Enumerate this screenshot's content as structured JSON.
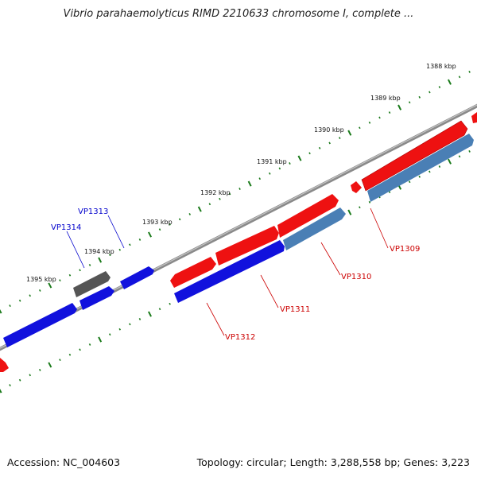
{
  "title": "Vibrio parahaemolyticus RIMD 2210633 chromosome I, complete ...",
  "footer": {
    "accession": "Accession: NC_004603",
    "stats": "Topology: circular; Length: 3,288,558 bp; Genes: 3,223"
  },
  "ruler_labels": [
    "1388 kbp",
    "1389 kbp",
    "1390 kbp",
    "1391 kbp",
    "1392 kbp",
    "1393 kbp",
    "1394 kbp",
    "1395 kbp"
  ],
  "gene_labels": [
    {
      "text": "VP1309",
      "color": "#cc0000"
    },
    {
      "text": "VP1310",
      "color": "#cc0000"
    },
    {
      "text": "VP1311",
      "color": "#cc0000"
    },
    {
      "text": "VP1312",
      "color": "#cc0000"
    },
    {
      "text": "VP1313",
      "color": "#0000cc"
    },
    {
      "text": "VP1314",
      "color": "#0000cc"
    }
  ],
  "colors": {
    "forward_gene": "#ee1111",
    "reverse_gene": "#1111dd",
    "other_gene": "#555555",
    "rna_feature": "#4a7fb5",
    "tick": "#1a7a1a",
    "backbone": "#888888"
  }
}
